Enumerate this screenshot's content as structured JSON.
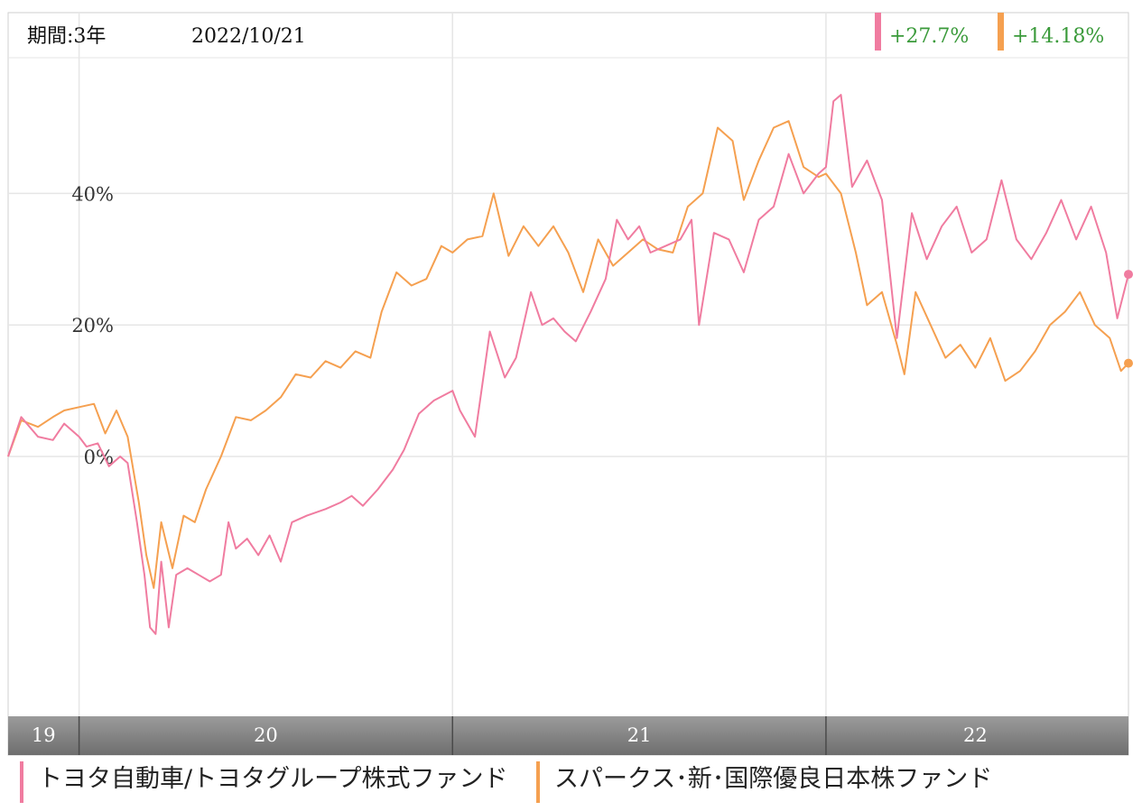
{
  "header": {
    "period_label": "期間:3年",
    "date": "2022/10/21"
  },
  "chart_data": {
    "type": "line",
    "title": "",
    "xlabel": "",
    "ylabel": "",
    "y_ticks": [
      0,
      20,
      40
    ],
    "y_tick_labels": [
      "0%",
      "20%",
      "40%"
    ],
    "ylim": [
      -42,
      60
    ],
    "xlim": [
      2019.81,
      2022.81
    ],
    "x_tick_labels": [
      {
        "label": "19",
        "at": 2019.905
      },
      {
        "label": "20",
        "at": 2020.5
      },
      {
        "label": "21",
        "at": 2021.5
      },
      {
        "label": "22",
        "at": 2022.4
      }
    ],
    "year_boundaries": [
      2020.0,
      2021.0,
      2022.0
    ],
    "grid": true,
    "legend_position": "bottom",
    "series": [
      {
        "name": "トヨタ自動車/トヨタグループ株式ファンド",
        "color": "#f07ca0",
        "final_return": "+27.7%",
        "points": [
          [
            2019.81,
            0
          ],
          [
            2019.845,
            6
          ],
          [
            2019.89,
            3
          ],
          [
            2019.93,
            2.5
          ],
          [
            2019.96,
            5
          ],
          [
            2020.0,
            3
          ],
          [
            2020.02,
            1.5
          ],
          [
            2020.05,
            2
          ],
          [
            2020.08,
            -1.5
          ],
          [
            2020.11,
            0
          ],
          [
            2020.13,
            -1
          ],
          [
            2020.155,
            -10
          ],
          [
            2020.175,
            -18
          ],
          [
            2020.19,
            -26
          ],
          [
            2020.205,
            -27
          ],
          [
            2020.22,
            -16
          ],
          [
            2020.24,
            -26
          ],
          [
            2020.26,
            -18
          ],
          [
            2020.29,
            -17
          ],
          [
            2020.32,
            -18
          ],
          [
            2020.35,
            -19
          ],
          [
            2020.38,
            -18
          ],
          [
            2020.4,
            -10
          ],
          [
            2020.42,
            -14
          ],
          [
            2020.45,
            -12.5
          ],
          [
            2020.48,
            -15
          ],
          [
            2020.51,
            -12
          ],
          [
            2020.54,
            -16
          ],
          [
            2020.57,
            -10
          ],
          [
            2020.61,
            -9
          ],
          [
            2020.66,
            -8
          ],
          [
            2020.7,
            -7
          ],
          [
            2020.73,
            -6
          ],
          [
            2020.76,
            -7.5
          ],
          [
            2020.8,
            -5
          ],
          [
            2020.84,
            -2
          ],
          [
            2020.87,
            1
          ],
          [
            2020.91,
            6.5
          ],
          [
            2020.95,
            8.5
          ],
          [
            2021.0,
            10
          ],
          [
            2021.02,
            7
          ],
          [
            2021.06,
            3
          ],
          [
            2021.1,
            19
          ],
          [
            2021.14,
            12
          ],
          [
            2021.17,
            15
          ],
          [
            2021.21,
            25
          ],
          [
            2021.24,
            20
          ],
          [
            2021.27,
            21
          ],
          [
            2021.3,
            19
          ],
          [
            2021.33,
            17.5
          ],
          [
            2021.37,
            22
          ],
          [
            2021.41,
            27
          ],
          [
            2021.44,
            36
          ],
          [
            2021.47,
            33
          ],
          [
            2021.5,
            35
          ],
          [
            2021.53,
            31
          ],
          [
            2021.57,
            32
          ],
          [
            2021.61,
            33
          ],
          [
            2021.64,
            36
          ],
          [
            2021.66,
            20
          ],
          [
            2021.7,
            34
          ],
          [
            2021.74,
            33
          ],
          [
            2021.78,
            28
          ],
          [
            2021.82,
            36
          ],
          [
            2021.86,
            38
          ],
          [
            2021.9,
            46
          ],
          [
            2021.94,
            40
          ],
          [
            2021.98,
            43
          ],
          [
            2022.0,
            44
          ],
          [
            2022.02,
            54
          ],
          [
            2022.04,
            55
          ],
          [
            2022.07,
            41
          ],
          [
            2022.11,
            45
          ],
          [
            2022.15,
            39
          ],
          [
            2022.19,
            18
          ],
          [
            2022.23,
            37
          ],
          [
            2022.27,
            30
          ],
          [
            2022.31,
            35
          ],
          [
            2022.35,
            38
          ],
          [
            2022.39,
            31
          ],
          [
            2022.43,
            33
          ],
          [
            2022.47,
            42
          ],
          [
            2022.51,
            33
          ],
          [
            2022.55,
            30
          ],
          [
            2022.59,
            34
          ],
          [
            2022.63,
            39
          ],
          [
            2022.67,
            33
          ],
          [
            2022.71,
            38
          ],
          [
            2022.75,
            31
          ],
          [
            2022.78,
            21
          ],
          [
            2022.81,
            27.7
          ]
        ]
      },
      {
        "name": "スパークス･新･国際優良日本株ファンド",
        "color": "#f5a050",
        "final_return": "+14.18%",
        "points": [
          [
            2019.81,
            0
          ],
          [
            2019.845,
            5.5
          ],
          [
            2019.89,
            4.5
          ],
          [
            2019.93,
            6
          ],
          [
            2019.96,
            7
          ],
          [
            2020.0,
            7.5
          ],
          [
            2020.04,
            8
          ],
          [
            2020.07,
            3.5
          ],
          [
            2020.1,
            7
          ],
          [
            2020.13,
            3
          ],
          [
            2020.16,
            -7
          ],
          [
            2020.18,
            -15
          ],
          [
            2020.2,
            -20
          ],
          [
            2020.22,
            -10
          ],
          [
            2020.25,
            -17
          ],
          [
            2020.28,
            -9
          ],
          [
            2020.31,
            -10
          ],
          [
            2020.34,
            -5
          ],
          [
            2020.38,
            0
          ],
          [
            2020.42,
            6
          ],
          [
            2020.46,
            5.5
          ],
          [
            2020.5,
            7
          ],
          [
            2020.54,
            9
          ],
          [
            2020.58,
            12.5
          ],
          [
            2020.62,
            12
          ],
          [
            2020.66,
            14.5
          ],
          [
            2020.7,
            13.5
          ],
          [
            2020.74,
            16
          ],
          [
            2020.78,
            15
          ],
          [
            2020.81,
            22
          ],
          [
            2020.85,
            28
          ],
          [
            2020.89,
            26
          ],
          [
            2020.93,
            27
          ],
          [
            2020.97,
            32
          ],
          [
            2021.0,
            31
          ],
          [
            2021.04,
            33
          ],
          [
            2021.08,
            33.5
          ],
          [
            2021.11,
            40
          ],
          [
            2021.15,
            30.5
          ],
          [
            2021.19,
            35
          ],
          [
            2021.23,
            32
          ],
          [
            2021.27,
            35
          ],
          [
            2021.31,
            31
          ],
          [
            2021.35,
            25
          ],
          [
            2021.39,
            33
          ],
          [
            2021.43,
            29
          ],
          [
            2021.47,
            31
          ],
          [
            2021.51,
            33
          ],
          [
            2021.55,
            31.5
          ],
          [
            2021.59,
            31
          ],
          [
            2021.63,
            38
          ],
          [
            2021.67,
            40
          ],
          [
            2021.71,
            50
          ],
          [
            2021.75,
            48
          ],
          [
            2021.78,
            39
          ],
          [
            2021.82,
            45
          ],
          [
            2021.86,
            50
          ],
          [
            2021.9,
            51
          ],
          [
            2021.94,
            44
          ],
          [
            2021.98,
            42.5
          ],
          [
            2022.0,
            43
          ],
          [
            2022.04,
            40
          ],
          [
            2022.08,
            31
          ],
          [
            2022.11,
            23
          ],
          [
            2022.15,
            25
          ],
          [
            2022.19,
            17
          ],
          [
            2022.21,
            12.5
          ],
          [
            2022.24,
            25
          ],
          [
            2022.28,
            20
          ],
          [
            2022.32,
            15
          ],
          [
            2022.36,
            17
          ],
          [
            2022.4,
            13.5
          ],
          [
            2022.44,
            18
          ],
          [
            2022.48,
            11.5
          ],
          [
            2022.52,
            13
          ],
          [
            2022.56,
            16
          ],
          [
            2022.6,
            20
          ],
          [
            2022.64,
            22
          ],
          [
            2022.68,
            25
          ],
          [
            2022.72,
            20
          ],
          [
            2022.76,
            18
          ],
          [
            2022.79,
            13
          ],
          [
            2022.81,
            14.18
          ]
        ]
      }
    ]
  }
}
